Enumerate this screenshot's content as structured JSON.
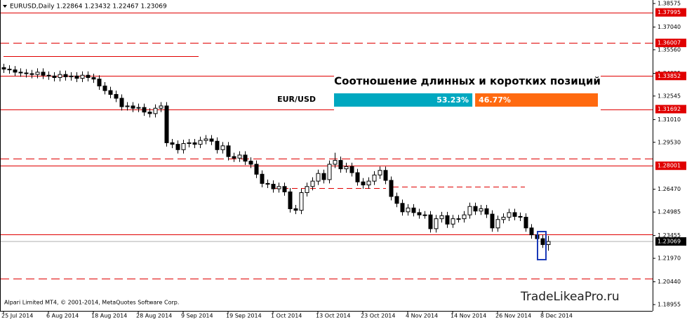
{
  "chart_data": {
    "type": "candlestick",
    "header": "EURUSD,Daily  1.22864 1.23432 1.22467 1.23069",
    "watermark": "TradeLikeaPro.ru",
    "copyright": "Alpari Limited MT4, © 2001-2014, MetaQuotes Software Corp.",
    "categories": [
      "25 Jul 2014",
      null,
      null,
      null,
      null,
      null,
      null,
      null,
      "6 Aug 2014",
      null,
      null,
      null,
      null,
      null,
      null,
      null,
      "18 Aug 2014",
      null,
      null,
      null,
      null,
      null,
      null,
      null,
      "28 Aug 2014",
      null,
      null,
      null,
      null,
      null,
      null,
      null,
      "9 Sep 2014",
      null,
      null,
      null,
      null,
      null,
      null,
      null,
      "19 Sep 2014",
      null,
      null,
      null,
      null,
      null,
      null,
      null,
      "1 Oct 2014",
      null,
      null,
      null,
      null,
      null,
      null,
      null,
      "13 Oct 2014",
      null,
      null,
      null,
      null,
      null,
      null,
      null,
      "23 Oct 2014",
      null,
      null,
      null,
      null,
      null,
      null,
      null,
      "4 Nov 2014",
      null,
      null,
      null,
      null,
      null,
      null,
      null,
      "14 Nov 2014",
      null,
      null,
      null,
      null,
      null,
      null,
      null,
      "26 Nov 2014",
      null,
      null,
      null,
      null,
      null,
      null,
      null,
      "8 Dec 2014",
      null
    ],
    "open": [
      1.344,
      1.343,
      1.3425,
      1.341,
      1.3405,
      1.34,
      1.3395,
      1.341,
      1.339,
      1.3385,
      1.3375,
      1.3395,
      1.338,
      1.3385,
      1.337,
      1.339,
      1.3375,
      1.3365,
      1.332,
      1.329,
      1.3265,
      1.324,
      1.3185,
      1.319,
      1.3175,
      1.318,
      1.315,
      1.314,
      1.3175,
      1.319,
      1.295,
      1.294,
      1.2905,
      1.2945,
      1.295,
      1.294,
      1.2965,
      1.2975,
      1.296,
      1.2905,
      1.293,
      1.286,
      1.285,
      1.287,
      1.283,
      1.281,
      1.2745,
      1.2685,
      1.268,
      1.265,
      1.2665,
      1.263,
      1.252,
      1.251,
      1.2625,
      1.2665,
      1.27,
      1.275,
      1.271,
      1.281,
      1.2835,
      1.278,
      1.2795,
      1.2755,
      1.2695,
      1.2675,
      1.27,
      1.274,
      1.277,
      1.2705,
      1.26,
      1.2555,
      1.25,
      1.2525,
      1.2495,
      1.248,
      1.248,
      1.239,
      1.2455,
      1.2475,
      1.242,
      1.2455,
      1.2455,
      1.248,
      1.2535,
      1.2505,
      1.252,
      1.2485,
      1.2395,
      1.245,
      1.2465,
      1.2495,
      1.247,
      1.2465,
      1.2395,
      1.235,
      1.2325,
      1.22864
    ],
    "high": [
      1.3465,
      1.3455,
      1.345,
      1.3435,
      1.343,
      1.3425,
      1.3435,
      1.3435,
      1.3415,
      1.341,
      1.342,
      1.342,
      1.341,
      1.341,
      1.3415,
      1.3415,
      1.34,
      1.339,
      1.3345,
      1.3315,
      1.329,
      1.3265,
      1.3215,
      1.3215,
      1.3205,
      1.3205,
      1.3175,
      1.32,
      1.3215,
      1.3215,
      1.2975,
      1.2965,
      1.297,
      1.2975,
      1.2975,
      1.299,
      1.3,
      1.3,
      1.2985,
      1.2955,
      1.2955,
      1.2885,
      1.2895,
      1.2895,
      1.2855,
      1.2835,
      1.277,
      1.271,
      1.2705,
      1.269,
      1.269,
      1.2655,
      1.2545,
      1.265,
      1.269,
      1.2725,
      1.2775,
      1.2775,
      1.2835,
      1.2885,
      1.286,
      1.282,
      1.282,
      1.278,
      1.272,
      1.2725,
      1.2765,
      1.2795,
      1.2795,
      1.273,
      1.2625,
      1.258,
      1.255,
      1.255,
      1.252,
      1.2505,
      1.2505,
      1.248,
      1.25,
      1.25,
      1.248,
      1.248,
      1.2505,
      1.256,
      1.256,
      1.2545,
      1.2545,
      1.251,
      1.2475,
      1.249,
      1.252,
      1.252,
      1.2495,
      1.249,
      1.242,
      1.2375,
      1.235,
      1.23432
    ],
    "low": [
      1.3405,
      1.34,
      1.3385,
      1.338,
      1.3375,
      1.337,
      1.337,
      1.3365,
      1.336,
      1.335,
      1.335,
      1.3355,
      1.3355,
      1.3345,
      1.3345,
      1.335,
      1.334,
      1.3295,
      1.3265,
      1.324,
      1.3215,
      1.316,
      1.316,
      1.315,
      1.315,
      1.3125,
      1.3115,
      1.3115,
      1.315,
      1.2925,
      1.2915,
      1.288,
      1.288,
      1.292,
      1.2915,
      1.2915,
      1.294,
      1.2935,
      1.288,
      1.288,
      1.2835,
      1.2825,
      1.2825,
      1.2805,
      1.2785,
      1.272,
      1.266,
      1.2655,
      1.2625,
      1.2625,
      1.2605,
      1.2495,
      1.2485,
      1.2485,
      1.26,
      1.264,
      1.2675,
      1.2685,
      1.2685,
      1.2785,
      1.2755,
      1.2755,
      1.273,
      1.267,
      1.265,
      1.265,
      1.2675,
      1.2715,
      1.268,
      1.2575,
      1.253,
      1.2475,
      1.2475,
      1.247,
      1.2455,
      1.2455,
      1.2365,
      1.2365,
      1.243,
      1.2395,
      1.2395,
      1.243,
      1.243,
      1.2455,
      1.248,
      1.248,
      1.246,
      1.237,
      1.237,
      1.2425,
      1.244,
      1.2445,
      1.244,
      1.237,
      1.2325,
      1.23,
      1.2265,
      1.22467
    ],
    "close": [
      1.343,
      1.3425,
      1.341,
      1.3405,
      1.34,
      1.3395,
      1.341,
      1.339,
      1.3385,
      1.3375,
      1.3395,
      1.338,
      1.3385,
      1.337,
      1.339,
      1.3375,
      1.3365,
      1.332,
      1.329,
      1.3265,
      1.324,
      1.3185,
      1.319,
      1.3175,
      1.318,
      1.315,
      1.314,
      1.3175,
      1.319,
      1.295,
      1.294,
      1.2905,
      1.2945,
      1.295,
      1.294,
      1.2965,
      1.2975,
      1.296,
      1.2905,
      1.293,
      1.286,
      1.285,
      1.287,
      1.283,
      1.281,
      1.2745,
      1.2685,
      1.268,
      1.265,
      1.2665,
      1.263,
      1.252,
      1.251,
      1.2625,
      1.2665,
      1.27,
      1.275,
      1.271,
      1.281,
      1.2835,
      1.278,
      1.2795,
      1.2755,
      1.2695,
      1.2675,
      1.27,
      1.274,
      1.277,
      1.2705,
      1.26,
      1.2555,
      1.25,
      1.2525,
      1.2495,
      1.248,
      1.248,
      1.239,
      1.2455,
      1.2475,
      1.242,
      1.2455,
      1.2455,
      1.248,
      1.2535,
      1.2505,
      1.252,
      1.2485,
      1.2395,
      1.245,
      1.2465,
      1.2495,
      1.247,
      1.2465,
      1.2395,
      1.235,
      1.2325,
      1.22864,
      1.23069
    ],
    "ylim": [
      1.18545,
      1.38803
    ],
    "yticks": [
      1.38575,
      {
        "value": 1.3704,
        "label": "1.37040"
      },
      {
        "value": 1.3556,
        "label": "1.35560"
      },
      1.34025,
      1.32545,
      {
        "value": 1.3101,
        "label": "1.31010"
      },
      {
        "value": 1.2953,
        "label": "1.29530"
      },
      {
        "value": 1.2647,
        "label": "1.26470"
      },
      1.24985,
      1.23455,
      {
        "value": 1.2197,
        "label": "1.21970"
      },
      {
        "value": 1.2044,
        "label": "1.20440"
      },
      1.18955
    ],
    "levels": [
      {
        "value": 1.37995,
        "style": "solid"
      },
      {
        "value": 1.36007,
        "style": "dashed"
      },
      {
        "value": 1.33852,
        "style": "solid"
      },
      {
        "value": 1.31692,
        "style": "solid"
      },
      {
        "value": 1.2845,
        "style": "dashed"
      },
      {
        "value": 1.28001,
        "style": "solid"
      },
      {
        "value": 1.2355,
        "style": "solid"
      },
      {
        "value": 1.2063,
        "style": "dashed"
      }
    ],
    "level_color": "#e00000",
    "bull_color": "#ffffff",
    "bear_color": "#000000",
    "sentiment": {
      "title": "Соотношение длинных и коротких позиций",
      "pair": "EUR/USD",
      "values": [
        53.23,
        46.77
      ],
      "value_labels": [
        "53.23%",
        "46.77%"
      ],
      "colors": [
        "#00a8c0",
        "#ff6a10"
      ]
    }
  }
}
